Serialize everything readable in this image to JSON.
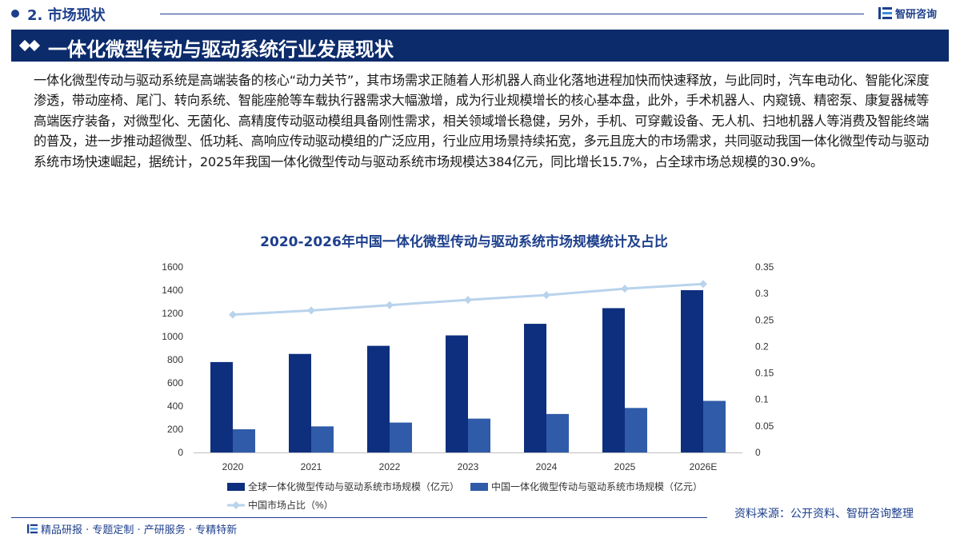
{
  "header": {
    "section_label": "2. 市场现状",
    "logo_text": "智研咨询",
    "title": "一体化微型传动与驱动系统行业发展现状"
  },
  "body_text": "一体化微型传动与驱动系统是高端装备的核心“动力关节”，其市场需求正随着人形机器人商业化落地进程加快而快速释放，与此同时，汽车电动化、智能化深度渗透，带动座椅、尾门、转向系统、智能座舱等车载执行器需求大幅激增，成为行业规模增长的核心基本盘，此外，手术机器人、内窥镜、精密泵、康复器械等高端医疗装备，对微型化、无菌化、高精度传动驱动模组具备刚性需求，相关领域增长稳健，另外，手机、可穿戴设备、无人机、扫地机器人等消费及智能终端的普及，进一步推动超微型、低功耗、高响应传动驱动模组的广泛应用，行业应用场景持续拓宽，多元且庞大的市场需求，共同驱动我国一体化微型传动与驱动系统市场快速崛起，据统计，2025年我国一体化微型传动与驱动系统市场规模达384亿元，同比增长15.7%，占全球市场总规模的30.9%。",
  "chart_data": {
    "type": "bar",
    "title": "2020-2026年中国一体化微型传动与驱动系统市场规模统计及占比",
    "categories": [
      "2020",
      "2021",
      "2022",
      "2023",
      "2024",
      "2025",
      "2026E"
    ],
    "series": [
      {
        "name": "全球一体化微型传动与驱动系统市场规模（亿元）",
        "type": "bar",
        "axis": "left",
        "color": "#0e2f7e",
        "values": [
          780,
          850,
          920,
          1010,
          1110,
          1245,
          1400
        ]
      },
      {
        "name": "中国一体化微型传动与驱动系统市场规模（亿元）",
        "type": "bar",
        "axis": "left",
        "color": "#2f5ba8",
        "values": [
          200,
          225,
          258,
          292,
          332,
          384,
          445
        ]
      },
      {
        "name": "中国市场占比（%）",
        "type": "line",
        "axis": "right",
        "color": "#b9d3ec",
        "values": [
          0.26,
          0.268,
          0.278,
          0.288,
          0.297,
          0.309,
          0.318
        ]
      }
    ],
    "y_left": {
      "min": 0,
      "max": 1600,
      "ticks": [
        "0",
        "200",
        "400",
        "600",
        "800",
        "1000",
        "1200",
        "1400",
        "1600"
      ]
    },
    "y_right": {
      "min": 0,
      "max": 0.35,
      "ticks": [
        "0",
        "0.05",
        "0.1",
        "0.15",
        "0.2",
        "0.25",
        "0.3",
        "0.35"
      ]
    },
    "grid": false,
    "legend_position": "bottom"
  },
  "footer": {
    "left_text": "精品研报 · 专题定制 · 产研服务 · 专精特新",
    "source": "资料来源：公开资料、智研咨询整理"
  },
  "colors": {
    "brand": "#1d3f8c",
    "banner": "#0c2b6b"
  }
}
